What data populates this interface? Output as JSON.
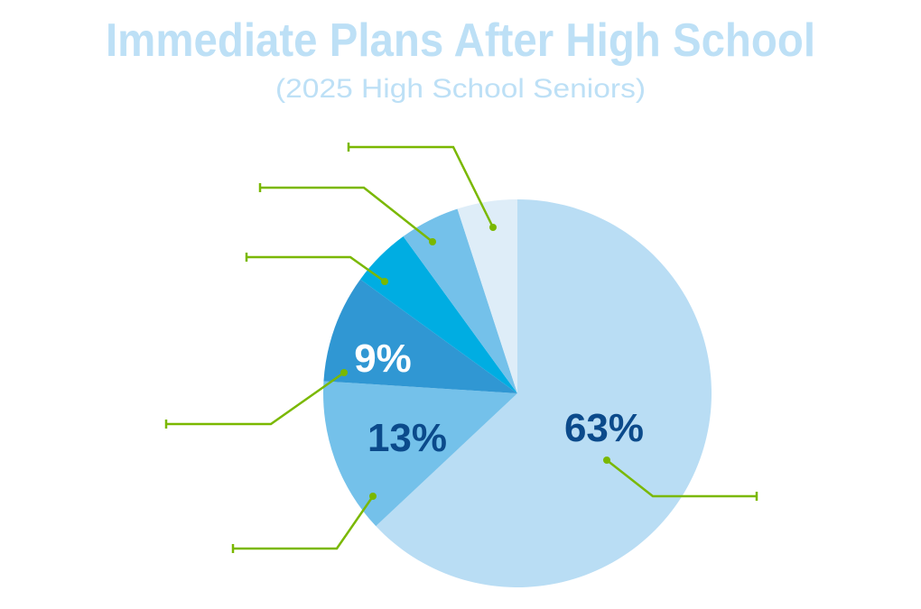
{
  "chart_data": {
    "type": "pie",
    "title": "Immediate Plans After High School",
    "subtitle": "(2025 High School Seniors)",
    "start_angle": "12 o'clock",
    "direction": "clockwise",
    "slices": [
      {
        "value": 63,
        "label": "63%",
        "color": "#b9ddf4",
        "label_color": "#0b4a8b"
      },
      {
        "value": 13,
        "label": "13%",
        "color": "#74c1ea",
        "label_color": "#0b4a8b"
      },
      {
        "value": 9,
        "label": "9%",
        "color": "#3097d3",
        "label_color": "#ffffff"
      },
      {
        "value": 5,
        "label": "",
        "color": "#00ade2"
      },
      {
        "value": 5,
        "label": "",
        "color": "#74c1ea"
      },
      {
        "value": 5,
        "label": "",
        "color": "#deedf8"
      }
    ],
    "leader_line_color": "#7ab800"
  }
}
